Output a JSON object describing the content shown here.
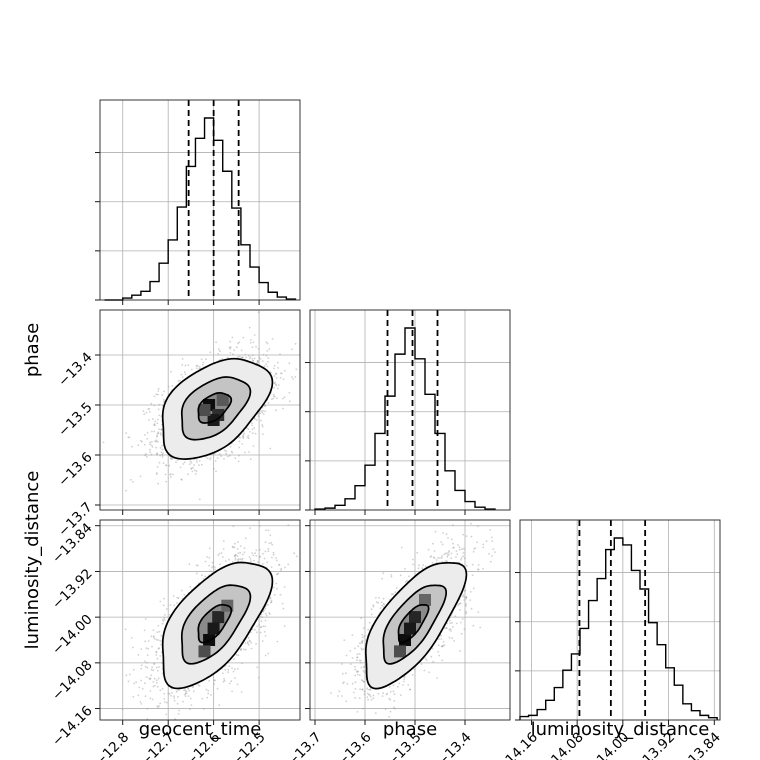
{
  "chart_data": {
    "type": "corner",
    "parameters": [
      {
        "name": "geocent_time",
        "label": "geocent_time",
        "range": [
          -12.85,
          -12.41
        ],
        "ticks": [
          -12.8,
          -12.7,
          -12.6,
          -12.5
        ],
        "tick_labels": [
          "−12.8",
          "−12.7",
          "−12.6",
          "−12.5"
        ],
        "quantiles": [
          -12.655,
          -12.6,
          -12.545
        ],
        "histogram": {
          "edges": [
            -12.84,
            -12.82,
            -12.8,
            -12.78,
            -12.76,
            -12.74,
            -12.72,
            -12.7,
            -12.68,
            -12.66,
            -12.64,
            -12.62,
            -12.6,
            -12.58,
            -12.56,
            -12.54,
            -12.52,
            -12.5,
            -12.48,
            -12.46,
            -12.44,
            -12.42
          ],
          "counts": [
            0,
            0,
            2,
            5,
            9,
            19,
            38,
            62,
            96,
            138,
            167,
            188,
            165,
            133,
            95,
            57,
            34,
            18,
            8,
            3,
            1
          ]
        }
      },
      {
        "name": "phase",
        "label": "phase",
        "range": [
          -13.71,
          -13.31
        ],
        "ticks": [
          -13.7,
          -13.6,
          -13.5,
          -13.4
        ],
        "tick_labels": [
          "−13.7",
          "−13.6",
          "−13.5",
          "−13.4"
        ],
        "quantiles": [
          -13.555,
          -13.505,
          -13.455
        ],
        "histogram": {
          "edges": [
            -13.7,
            -13.68,
            -13.66,
            -13.64,
            -13.62,
            -13.6,
            -13.58,
            -13.56,
            -13.54,
            -13.52,
            -13.5,
            -13.48,
            -13.46,
            -13.44,
            -13.42,
            -13.4,
            -13.38,
            -13.36,
            -13.34
          ],
          "counts": [
            1,
            2,
            5,
            12,
            26,
            48,
            82,
            122,
            167,
            195,
            162,
            124,
            82,
            42,
            21,
            9,
            3,
            1
          ]
        }
      },
      {
        "name": "luminosity_distance",
        "label": "luminosity_distance",
        "range": [
          -14.18,
          -13.83
        ],
        "ticks": [
          -14.16,
          -14.08,
          -14.0,
          -13.92,
          -13.84
        ],
        "tick_labels": [
          "−14.16",
          "−14.08",
          "−14.00",
          "−13.92",
          "−13.84"
        ],
        "quantiles": [
          -14.076,
          -14.021,
          -13.961
        ],
        "histogram": {
          "edges": [
            -14.18,
            -14.165,
            -14.15,
            -14.135,
            -14.12,
            -14.105,
            -14.09,
            -14.075,
            -14.06,
            -14.045,
            -14.03,
            -14.015,
            -14.0,
            -13.985,
            -13.97,
            -13.955,
            -13.94,
            -13.925,
            -13.91,
            -13.895,
            -13.88,
            -13.865,
            -13.85,
            -13.835
          ],
          "counts": [
            3,
            4,
            9,
            17,
            28,
            43,
            57,
            79,
            103,
            122,
            147,
            157,
            151,
            129,
            113,
            84,
            65,
            45,
            30,
            14,
            8,
            4,
            2
          ]
        }
      }
    ],
    "pairs": [
      {
        "x": "geocent_time",
        "y": "phase",
        "center": [
          -12.6,
          -13.505
        ],
        "sigma": [
          0.06,
          0.05
        ],
        "correlation": 0.45,
        "density_blocks": [
          [
            -12.61,
            -13.5,
            0.95
          ],
          [
            -12.59,
            -13.52,
            0.82
          ],
          [
            -12.6,
            -13.53,
            0.9
          ],
          [
            -12.62,
            -13.51,
            0.7
          ],
          [
            -12.58,
            -13.49,
            0.65
          ]
        ]
      },
      {
        "x": "geocent_time",
        "y": "luminosity_distance",
        "center": [
          -12.6,
          -14.01
        ],
        "sigma": [
          0.06,
          0.055
        ],
        "correlation": 0.6,
        "density_blocks": [
          [
            -12.61,
            -14.04,
            0.95
          ],
          [
            -12.59,
            -14.0,
            0.85
          ],
          [
            -12.6,
            -14.02,
            0.9
          ],
          [
            -12.57,
            -13.98,
            0.6
          ],
          [
            -12.62,
            -14.06,
            0.7
          ]
        ]
      },
      {
        "x": "phase",
        "y": "luminosity_distance",
        "center": [
          -13.505,
          -14.01
        ],
        "sigma": [
          0.05,
          0.055
        ],
        "correlation": 0.7,
        "density_blocks": [
          [
            -13.52,
            -14.04,
            0.95
          ],
          [
            -13.5,
            -14.0,
            0.85
          ],
          [
            -13.51,
            -14.02,
            0.9
          ],
          [
            -13.48,
            -13.97,
            0.6
          ],
          [
            -13.53,
            -14.06,
            0.7
          ]
        ]
      }
    ],
    "contour_levels_sigma": [
      0.6,
      1.25,
      2.0
    ]
  }
}
